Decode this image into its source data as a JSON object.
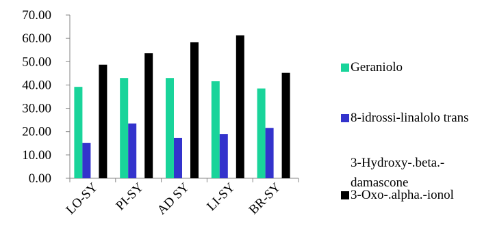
{
  "chart_data": {
    "type": "bar",
    "categories": [
      "LO-SY",
      "PI-SY",
      "AD SY",
      "LI-SY",
      "BR-SY"
    ],
    "series": [
      {
        "name": "Geraniolo",
        "color": "#19d49a",
        "values": [
          39.2,
          43.0,
          43.0,
          41.6,
          38.5
        ]
      },
      {
        "name": "8-idrossi-linalolo trans",
        "color": "#3333cc",
        "values": [
          15.2,
          23.5,
          17.3,
          19.0,
          21.6
        ]
      },
      {
        "name": "3-Hydroxy-.beta.-damascone",
        "color": "#ffffff",
        "values": [
          0,
          0,
          0,
          0,
          0
        ]
      },
      {
        "name": "3-Oxo-.alpha.-ionol",
        "color": "#000000",
        "values": [
          48.7,
          53.6,
          58.3,
          61.3,
          45.2
        ]
      }
    ],
    "yticks": [
      "0.00",
      "10.00",
      "20.00",
      "30.00",
      "40.00",
      "50.00",
      "60.00",
      "70.00"
    ],
    "ylim": [
      0,
      70
    ],
    "legend_position": "right",
    "grid": false
  }
}
